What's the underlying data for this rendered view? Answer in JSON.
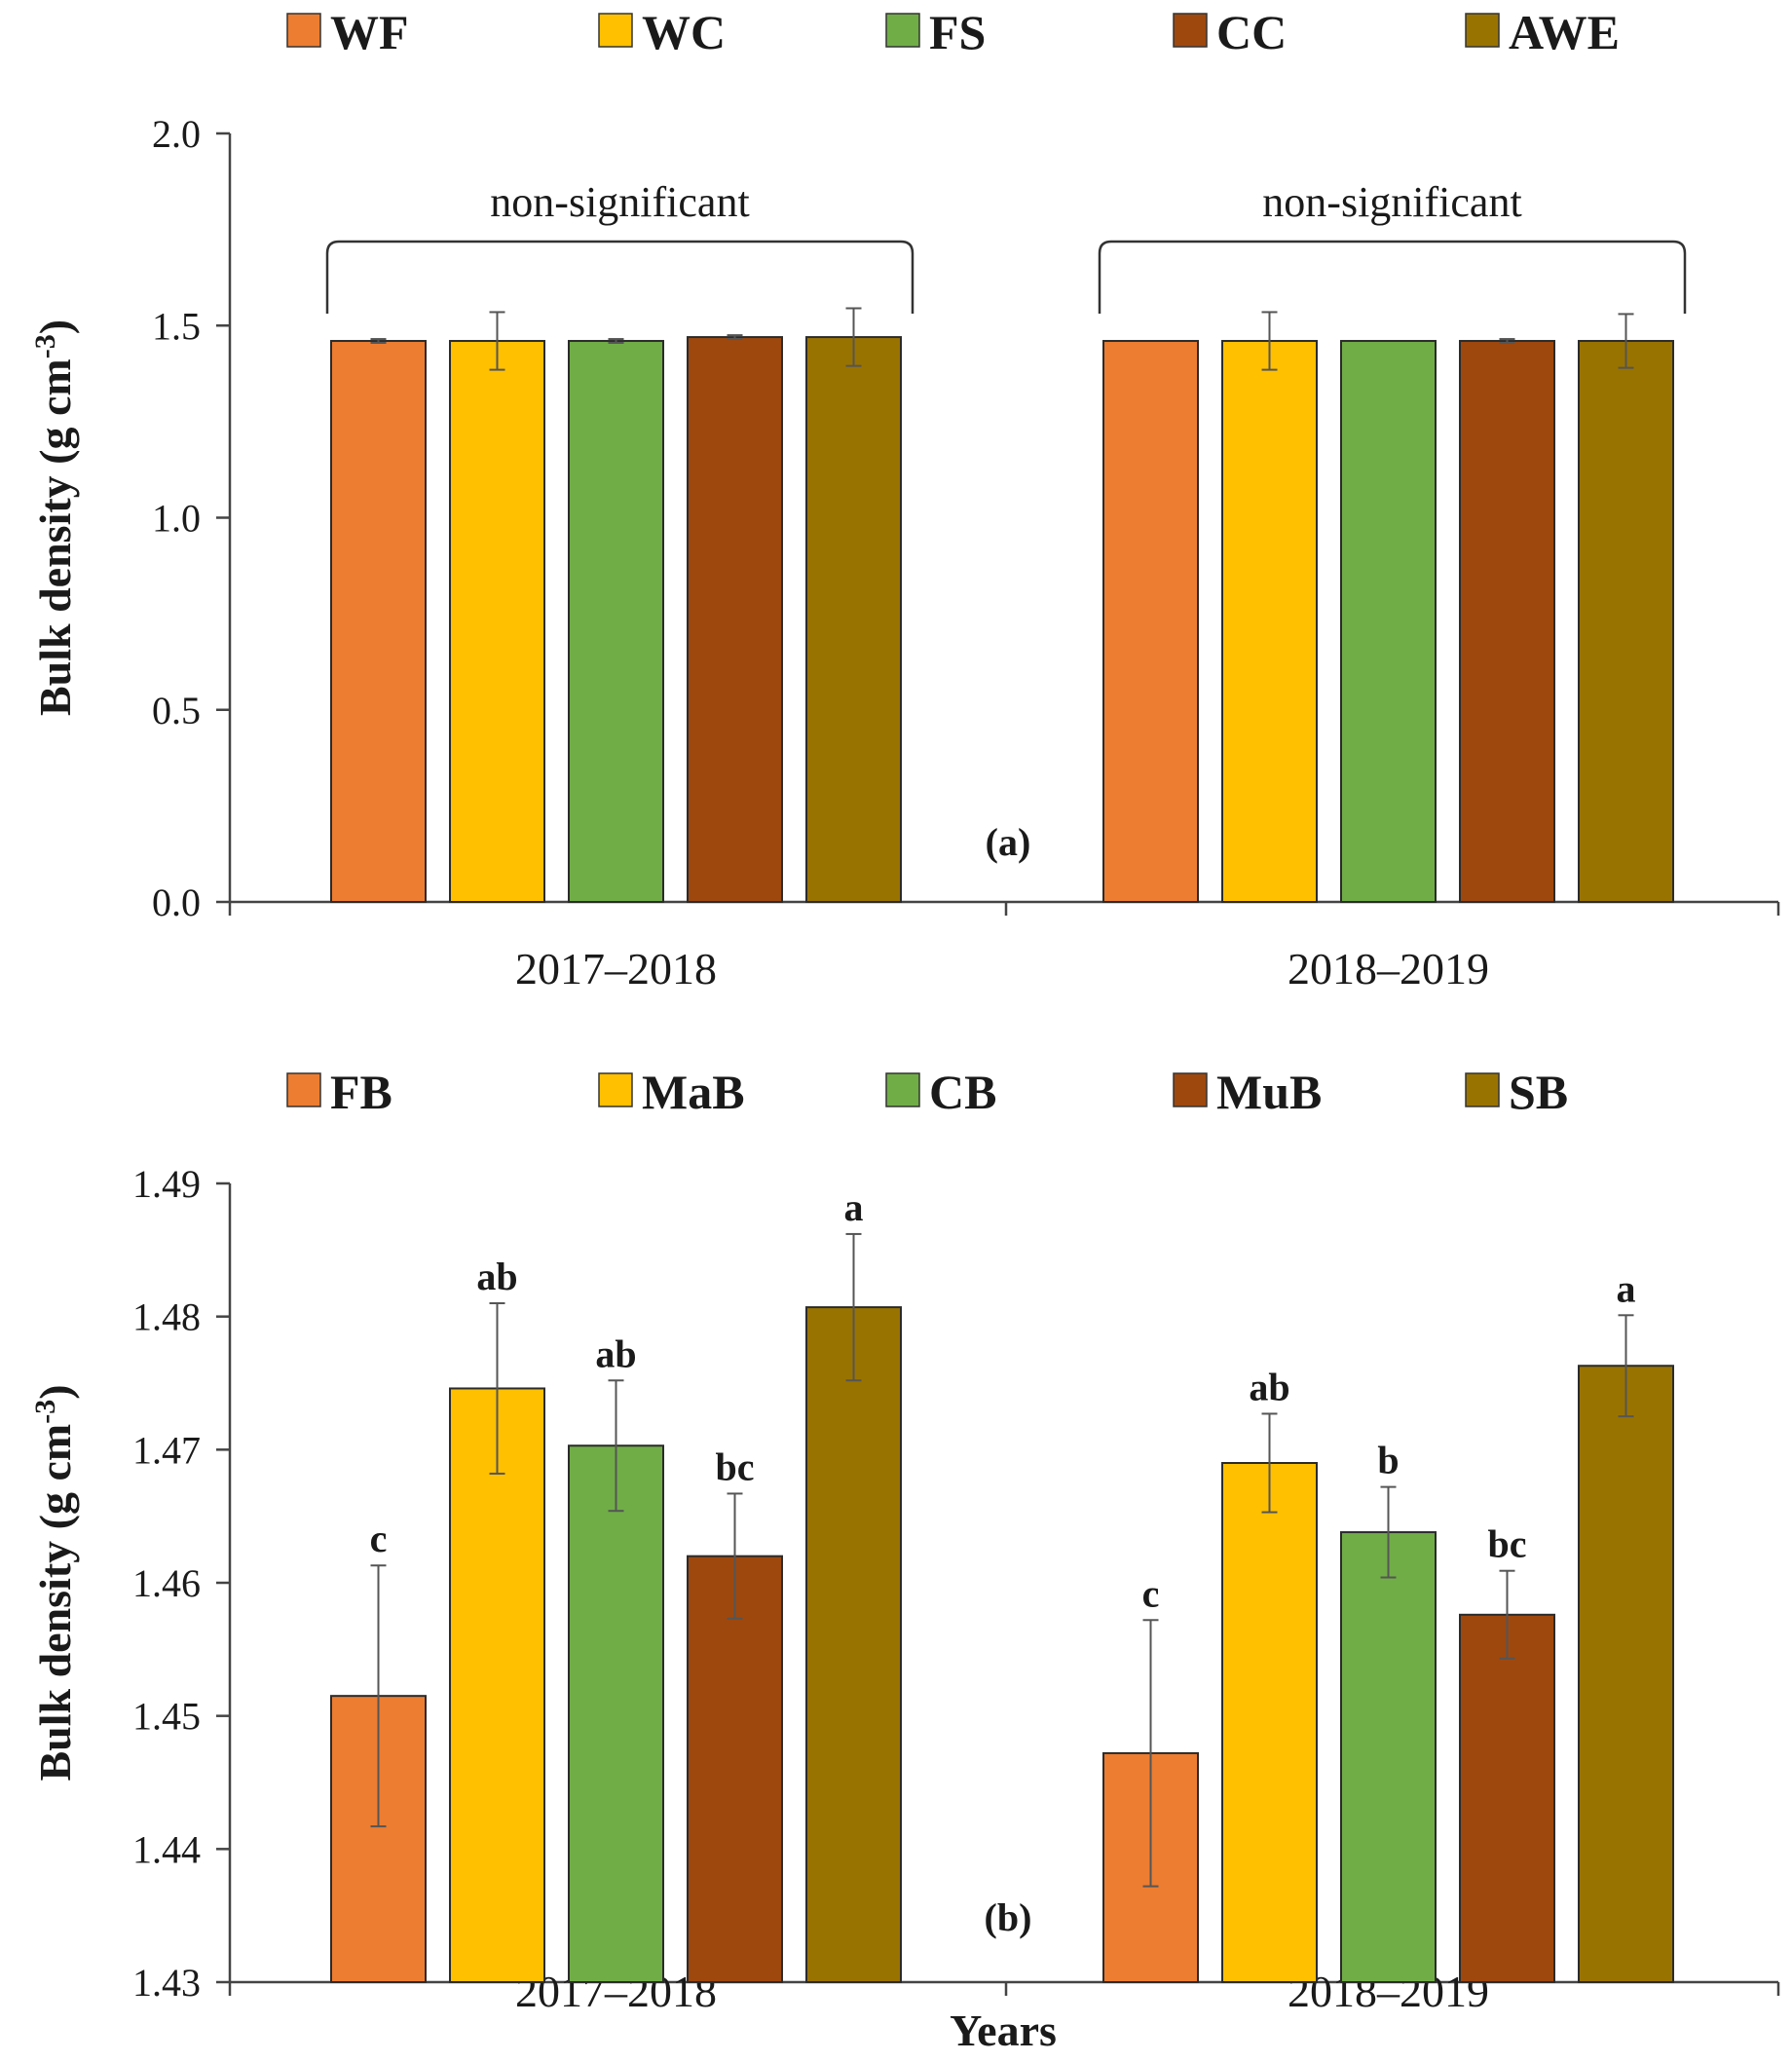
{
  "colors": {
    "orange": "#ED7D31",
    "gold": "#FFC000",
    "green": "#70AD47",
    "brown": "#9E480E",
    "olive": "#997300",
    "axis": "#444444",
    "errorbar": "#555555"
  },
  "chart_data": [
    {
      "type": "bar",
      "panel_label": "(a)",
      "categories": [
        "2017–2018",
        "2018–2019"
      ],
      "ylabel": "Bulk density (g cm",
      "ylabel_sup": "-3",
      "ylabel_close": ")",
      "xlabel": "",
      "ylim": [
        0,
        2.0
      ],
      "yticks": [
        0.0,
        0.5,
        1.0,
        1.5,
        2.0
      ],
      "tick_decimals": 1,
      "series": [
        {
          "name": "WF",
          "color": "#ED7D31",
          "values": [
            1.46,
            1.46
          ],
          "errors": [
            0.005,
            0.0
          ]
        },
        {
          "name": "WC",
          "color": "#FFC000",
          "values": [
            1.46,
            1.46
          ],
          "errors": [
            0.075,
            0.075
          ]
        },
        {
          "name": "FS",
          "color": "#70AD47",
          "values": [
            1.46,
            1.46
          ],
          "errors": [
            0.005,
            0.0
          ]
        },
        {
          "name": "CC",
          "color": "#9E480E",
          "values": [
            1.47,
            1.46
          ],
          "errors": [
            0.005,
            0.005
          ]
        },
        {
          "name": "AWE",
          "color": "#997300",
          "values": [
            1.47,
            1.46
          ],
          "errors": [
            0.075,
            0.07
          ]
        }
      ],
      "brackets": [
        {
          "group": 0,
          "label": "non-significant"
        },
        {
          "group": 1,
          "label": "non-significant"
        }
      ]
    },
    {
      "type": "bar",
      "panel_label": "(b)",
      "categories": [
        "2017–2018",
        "2018–2019"
      ],
      "ylabel": "Bulk density (g cm",
      "ylabel_sup": "-3",
      "ylabel_close": ")",
      "xlabel": "Years",
      "ylim": [
        1.43,
        1.49
      ],
      "yticks": [
        1.43,
        1.44,
        1.45,
        1.46,
        1.47,
        1.48,
        1.49
      ],
      "tick_decimals": 2,
      "series": [
        {
          "name": "FB",
          "color": "#ED7D31",
          "values": [
            1.4515,
            1.4472
          ],
          "errors": [
            0.0098,
            0.01
          ],
          "letters": [
            "c",
            "c"
          ]
        },
        {
          "name": "MaB",
          "color": "#FFC000",
          "values": [
            1.4746,
            1.469
          ],
          "errors": [
            0.0064,
            0.0037
          ],
          "letters": [
            "ab",
            "ab"
          ]
        },
        {
          "name": "CB",
          "color": "#70AD47",
          "values": [
            1.4703,
            1.4638
          ],
          "errors": [
            0.0049,
            0.0034
          ],
          "letters": [
            "ab",
            "b"
          ]
        },
        {
          "name": "MuB",
          "color": "#9E480E",
          "values": [
            1.462,
            1.4576
          ],
          "errors": [
            0.0047,
            0.0033
          ],
          "letters": [
            "bc",
            "bc"
          ]
        },
        {
          "name": "SB",
          "color": "#997300",
          "values": [
            1.4807,
            1.4763
          ],
          "errors": [
            0.0055,
            0.0038
          ],
          "letters": [
            "a",
            "a"
          ]
        }
      ]
    }
  ]
}
